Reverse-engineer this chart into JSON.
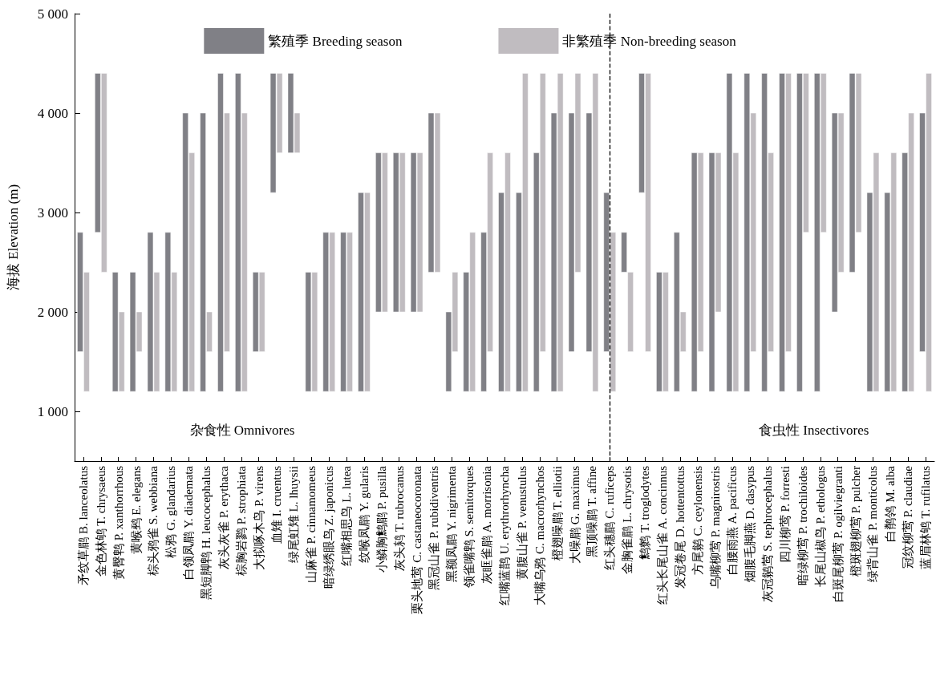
{
  "chart_data": {
    "type": "bar",
    "ylabel": "海拔 Elevation (m)",
    "categories": [
      "矛纹草鹛 B. lanceolatus",
      "金色林鸲 T. chrysaeus",
      "黄臀鹎 P. xanthorrhous",
      "黄喉鹀 E. elegans",
      "棕头鸦雀 S. webbiana",
      "松鸦 G. glandarius",
      "白领凤鹛 Y. diademata",
      "黑短脚鹎 H. leucocephalus",
      "灰头灰雀 P. erythaca",
      "棕胸岩鹨 P. strophiata",
      "大拟啄木鸟 P. virens",
      "血雉 I. cruentus",
      "绿尾虹雉 L. lhuysii",
      "山麻雀 P. cinnamomeus",
      "暗绿绣眼鸟 Z. japonicus",
      "红嘴相思鸟 L. lutea",
      "纹喉凤鹛 Y. gularis",
      "小鳞胸鹪鹛 P. pusilla",
      "灰头鸫 T. rubrocanus",
      "栗头地莺 C. castaneocoronata",
      "黑冠山雀 P. rubidiventris",
      "黑额凤鹛 Y. nigrimenta",
      "领雀嘴鹎 S. semitorques",
      "灰眶雀鹛 A. morrisonia",
      "红嘴蓝鹊 U. erythrorhyncha",
      "黄腹山雀 P. venustulus",
      "大嘴乌鸦 C. macrorhynchos",
      "橙翅噪鹛 T. elliotii",
      "大噪鹛 G. maximus",
      "黑顶噪鹛 T. affine",
      "红头穗鹛 C. ruficeps",
      "金胸雀鹛 L. chrysotis",
      "鹪鹩 T. troglodytes",
      "红头长尾山雀 A. concinnus",
      "发冠卷尾 D. hottentottus",
      "方尾鹟 C. ceylonensis",
      "乌嘴柳莺 P. magnirostris",
      "白腰雨燕 A. pacificus",
      "烟腹毛脚燕 D. dasypus",
      "灰冠鹟莺 S. tephrocephalus",
      "四川柳莺 P. forresti",
      "暗绿柳莺 P. trochiloides",
      "长尾山椒鸟 P. ethologus",
      "白斑尾柳莺 P. ogilviegranti",
      "橙斑翅柳莺 P. pulcher",
      "绿背山雀 P. monticolus",
      "白鹡鸰 M. alba",
      "冠纹柳莺 P. claudiae",
      "蓝眉林鸲 T. rufilatus"
    ],
    "series": [
      {
        "name": "繁殖季 Breeding season",
        "color": "#808086",
        "base": [
          1600,
          2800,
          1200,
          1200,
          1200,
          1200,
          1200,
          1200,
          1200,
          1200,
          1600,
          3200,
          3600,
          1200,
          1200,
          1200,
          1200,
          2000,
          2000,
          2000,
          2400,
          1200,
          1200,
          1200,
          1200,
          1200,
          1200,
          1200,
          1600,
          1600,
          1600,
          2400,
          3200,
          1200,
          1200,
          1200,
          1200,
          1200,
          1200,
          1200,
          1200,
          1200,
          1200,
          2000,
          2400,
          1200,
          1200,
          1200,
          1600
        ],
        "values": [
          1200,
          1600,
          1200,
          1200,
          1600,
          1600,
          2800,
          2800,
          3200,
          3200,
          800,
          1200,
          800,
          1200,
          1600,
          1600,
          2000,
          1600,
          1600,
          1600,
          1600,
          800,
          1200,
          1600,
          2000,
          2000,
          2400,
          2800,
          2400,
          2400,
          1600,
          400,
          1200,
          1200,
          1600,
          2400,
          2400,
          3200,
          3200,
          3200,
          3200,
          3200,
          3200,
          2000,
          2000,
          2000,
          2000,
          2400,
          2400
        ]
      },
      {
        "name": "非繁殖季 Non-breeding season",
        "color": "#c0bcc0",
        "base": [
          1200,
          2400,
          1200,
          1600,
          1200,
          1200,
          1200,
          1600,
          1600,
          1200,
          1600,
          3600,
          3600,
          1200,
          1200,
          1200,
          1200,
          2000,
          2000,
          2000,
          2400,
          1600,
          1200,
          1600,
          1200,
          1200,
          1600,
          1200,
          2400,
          1200,
          1200,
          1600,
          1600,
          1200,
          1600,
          1600,
          2000,
          1200,
          1600,
          1600,
          1600,
          2800,
          2800,
          2400,
          2800,
          1200,
          1200,
          1200,
          1200
        ],
        "values": [
          1200,
          2000,
          800,
          400,
          1200,
          1200,
          2400,
          400,
          2400,
          2800,
          800,
          800,
          400,
          1200,
          1600,
          1600,
          2000,
          1600,
          1600,
          1600,
          1600,
          800,
          1600,
          2000,
          2400,
          3200,
          2800,
          3200,
          2000,
          3200,
          1600,
          800,
          2800,
          1200,
          400,
          2000,
          1600,
          2400,
          2400,
          2000,
          2800,
          1600,
          1600,
          1600,
          1600,
          2400,
          2400,
          2800,
          3200
        ]
      }
    ],
    "ylim": [
      500,
      5000
    ],
    "yticks": [
      {
        "value": 1000,
        "label": "1 000"
      },
      {
        "value": 2000,
        "label": "2 000"
      },
      {
        "value": 3000,
        "label": "3 000"
      },
      {
        "value": 4000,
        "label": "4 000"
      },
      {
        "value": 5000,
        "label": "5 000"
      }
    ],
    "annotations": [
      "杂食性 Omnivores",
      "食虫性 Insectivores"
    ],
    "legend": "top"
  }
}
